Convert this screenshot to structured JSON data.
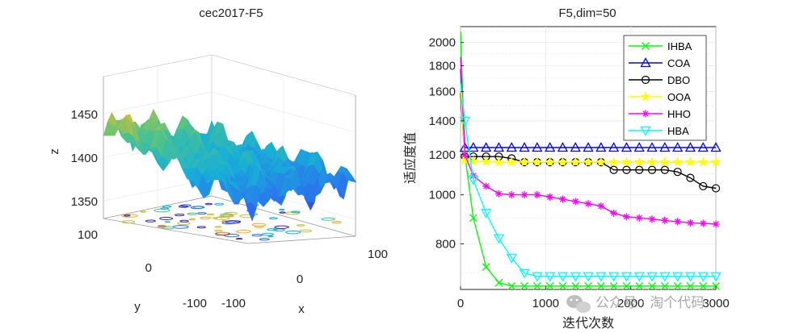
{
  "watermark": "公众号 · 淘个代码",
  "chart_data": [
    {
      "type": "surface3d",
      "title": "cec2017-F5",
      "xlabel": "x",
      "ylabel": "y",
      "zlabel": "z",
      "x_ticks": [
        "-100",
        "0",
        "100"
      ],
      "y_ticks": [
        "-100",
        "0",
        "100"
      ],
      "z_ticks": [
        "1350",
        "1400",
        "1450"
      ],
      "xlim": [
        -100,
        100
      ],
      "ylim": [
        -100,
        100
      ],
      "zlim": [
        1330,
        1480
      ],
      "has_contour_projection": true,
      "colormap": "parula"
    },
    {
      "type": "line",
      "title": "F5,dim=50",
      "xlabel": "迭代次数",
      "ylabel": "适应度值",
      "yscale": "log",
      "xlim": [
        0,
        3000
      ],
      "ylim": [
        650,
        2150
      ],
      "x_ticks": [
        "0",
        "1000",
        "2000",
        "3000"
      ],
      "y_ticks": [
        "800",
        "1000",
        "1200",
        "1400",
        "1600",
        "1800",
        "2000"
      ],
      "grid": true,
      "legend_position": "top-right",
      "x": [
        0,
        50,
        150,
        300,
        450,
        600,
        750,
        900,
        1050,
        1200,
        1350,
        1500,
        1650,
        1800,
        1950,
        2100,
        2250,
        2400,
        2550,
        2700,
        2850,
        3000
      ],
      "series": [
        {
          "name": "IHBA",
          "color": "#00ff00",
          "marker": "x",
          "values": [
            2100,
            1200,
            900,
            720,
            670,
            660,
            660,
            660,
            660,
            660,
            660,
            660,
            660,
            660,
            660,
            660,
            660,
            660,
            660,
            660,
            660,
            660
          ]
        },
        {
          "name": "COA",
          "color": "#0000ff",
          "marker": "triangle",
          "values": [
            1770,
            1240,
            1240,
            1240,
            1240,
            1240,
            1240,
            1240,
            1240,
            1240,
            1240,
            1240,
            1240,
            1240,
            1240,
            1240,
            1240,
            1240,
            1240,
            1240,
            1240,
            1240
          ]
        },
        {
          "name": "DBO",
          "color": "#000000",
          "marker": "circle",
          "values": [
            1590,
            1190,
            1190,
            1190,
            1190,
            1180,
            1160,
            1160,
            1160,
            1160,
            1160,
            1160,
            1160,
            1120,
            1120,
            1120,
            1120,
            1120,
            1110,
            1080,
            1040,
            1030
          ]
        },
        {
          "name": "OOA",
          "color": "#ffff00",
          "marker": "star",
          "values": [
            1650,
            1170,
            1165,
            1163,
            1160,
            1160,
            1160,
            1160,
            1160,
            1160,
            1160,
            1160,
            1160,
            1160,
            1160,
            1160,
            1160,
            1160,
            1160,
            1160,
            1160,
            1160
          ]
        },
        {
          "name": "HHO",
          "color": "#ff00ff",
          "marker": "asterisk",
          "values": [
            1870,
            1200,
            1090,
            1040,
            1005,
            1000,
            1000,
            1000,
            990,
            980,
            970,
            960,
            950,
            920,
            905,
            900,
            895,
            890,
            885,
            880,
            878,
            875
          ]
        },
        {
          "name": "HBA",
          "color": "#00ffff",
          "marker": "triangle-down",
          "values": [
            1660,
            1400,
            1070,
            920,
            820,
            750,
            700,
            690,
            690,
            690,
            690,
            690,
            690,
            690,
            690,
            690,
            690,
            690,
            690,
            690,
            690,
            690
          ]
        }
      ]
    }
  ]
}
